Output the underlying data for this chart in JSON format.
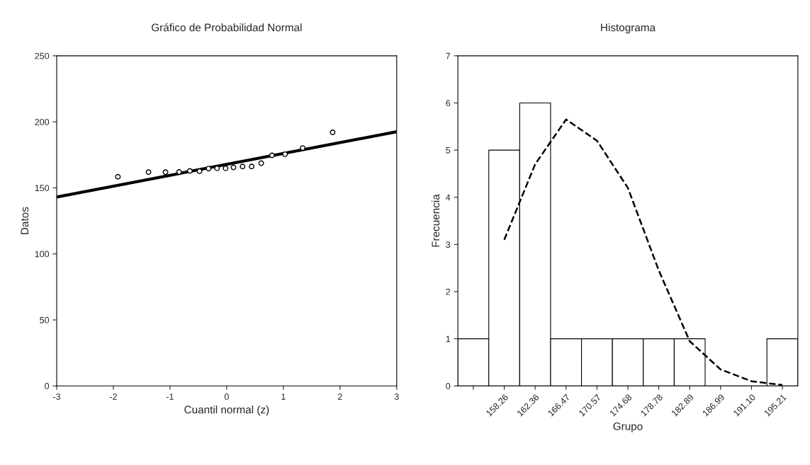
{
  "chart_data": [
    {
      "type": "scatter",
      "title": "Gráfico de Probabilidad Normal",
      "xlabel": "Cuantil normal (z)",
      "ylabel": "Datos",
      "xlim": [
        -3,
        3
      ],
      "xticks": [
        -3,
        -2,
        -1,
        0,
        1,
        2,
        3
      ],
      "ylim": [
        0,
        250
      ],
      "yticks": [
        0,
        50,
        100,
        150,
        200,
        250
      ],
      "grid": false,
      "legend": false,
      "series": [
        {
          "color": "#000000",
          "marker": "circle",
          "x": [
            -1.92,
            -1.38,
            -1.08,
            -0.84,
            -0.65,
            -0.48,
            -0.32,
            -0.17,
            -0.02,
            0.12,
            0.28,
            0.44,
            0.61,
            0.8,
            1.03,
            1.34,
            1.87
          ],
          "values": [
            158.4,
            161.9,
            161.9,
            162,
            162.8,
            162.6,
            164.6,
            164.8,
            164.8,
            165.5,
            166.2,
            166.2,
            168.7,
            174.6,
            175.5,
            180.2,
            192
          ]
        },
        {
          "type": "line",
          "color": "#000000",
          "line_style": "solid",
          "x": [
            -3,
            3
          ],
          "values": [
            143,
            192.5
          ]
        }
      ]
    },
    {
      "type": "bar",
      "title": "Histograma",
      "xlabel": "Grupo",
      "ylabel": "Frecuencia",
      "categories": [
        null,
        "158.26",
        "162.36",
        "166.47",
        "170.57",
        "174.68",
        "178.78",
        "182.89",
        "186.99",
        "191.10",
        "195.21"
      ],
      "ylim": [
        0,
        7
      ],
      "yticks": [
        0,
        1,
        2,
        3,
        4,
        5,
        6,
        7
      ],
      "grid": false,
      "legend": false,
      "series": [
        {
          "color": "#ffffff",
          "values": [
            1,
            5,
            6,
            1,
            1,
            1,
            1,
            1,
            0,
            0,
            1
          ]
        },
        {
          "type": "line",
          "color": "#000000",
          "line_style": "dashed",
          "values": [
            null,
            3.1,
            4.7,
            5.65,
            5.2,
            4.2,
            2.45,
            0.95,
            0.35,
            0.1,
            0.02
          ]
        }
      ]
    }
  ]
}
